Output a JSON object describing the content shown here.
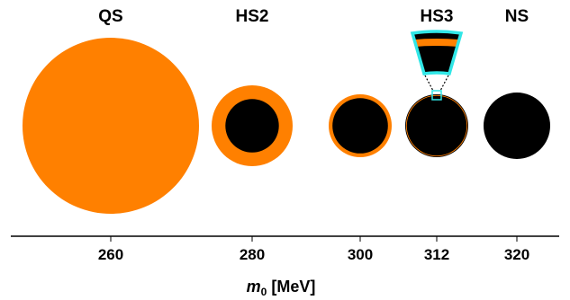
{
  "colors": {
    "quark": "#ff8000",
    "hadron": "#000000",
    "zoom": "#30e6e6",
    "axis": "#000000"
  },
  "stars": [
    {
      "title": "QS",
      "m0": "260",
      "layers": [
        {
          "fraction": 1.0,
          "color": "quark"
        }
      ]
    },
    {
      "title": "HS2",
      "m0": "280",
      "layers": [
        {
          "fraction": 1.0,
          "color": "quark"
        },
        {
          "fraction": 0.66,
          "color": "hadron"
        }
      ]
    },
    {
      "title": "",
      "m0": "300",
      "layers": [
        {
          "fraction": 1.0,
          "color": "quark"
        },
        {
          "fraction": 0.88,
          "color": "hadron"
        }
      ]
    },
    {
      "title": "HS3",
      "m0": "312",
      "layers": [
        {
          "fraction": 1.0,
          "color": "hadron"
        },
        {
          "fraction": 0.975,
          "color": "quark"
        },
        {
          "fraction": 0.95,
          "color": "hadron"
        }
      ]
    },
    {
      "title": "NS",
      "m0": "320",
      "layers": [
        {
          "fraction": 1.0,
          "color": "hadron"
        }
      ]
    }
  ],
  "axis": {
    "label_var": "m",
    "label_sub": "0",
    "label_unit": " [MeV]"
  }
}
